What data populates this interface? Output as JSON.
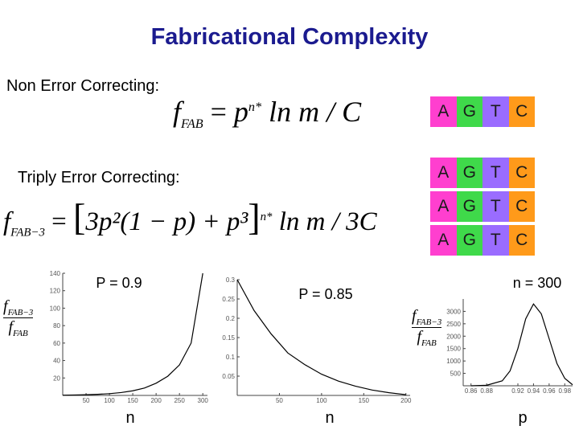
{
  "title": "Fabricational Complexity",
  "section1": {
    "label": "Non Error Correcting:",
    "formula": {
      "f": "f",
      "sub": "FAB",
      "eq": "=",
      "base": "p",
      "exp": "n*",
      "tail": "ln m / C"
    }
  },
  "section2": {
    "label": "Triply Error Correcting:",
    "formula": {
      "f": "f",
      "sub": "FAB−3",
      "eq": "=",
      "open": "[",
      "body": "3p²(1 − p) + p³",
      "close": "]",
      "exp": "n*",
      "tail": "ln m / 3C"
    }
  },
  "dna_rows": [
    [
      "A",
      "G",
      "T",
      "C"
    ],
    [
      "A",
      "G",
      "T",
      "C"
    ],
    [
      "A",
      "G",
      "T",
      "C"
    ],
    [
      "A",
      "G",
      "T",
      "C"
    ]
  ],
  "dna_colors": [
    "#ff3fcf",
    "#3fd94a",
    "#9a6cff",
    "#ff9a1a"
  ],
  "ratio_label": {
    "num": "f",
    "num_sub": "FAB−3",
    "den": "f",
    "den_sub": "FAB"
  },
  "chart_data": [
    {
      "type": "line",
      "title": "P = 0.9",
      "x_label": "n",
      "x": [
        0,
        25,
        50,
        75,
        100,
        125,
        150,
        175,
        200,
        225,
        250,
        275,
        300
      ],
      "values": [
        0.3,
        0.5,
        0.8,
        1.3,
        2,
        3.3,
        5.3,
        8.5,
        14,
        22,
        35,
        60,
        140
      ],
      "xlim": [
        0,
        310
      ],
      "xticks": [
        50,
        100,
        150,
        200,
        250,
        300
      ],
      "ylim": [
        0,
        140
      ],
      "yticks": [
        20,
        40,
        60,
        80,
        100,
        120,
        140
      ],
      "color": "#000000"
    },
    {
      "type": "line",
      "title": "P = 0.85",
      "x_label": "n",
      "x": [
        0,
        20,
        40,
        60,
        80,
        100,
        120,
        140,
        160,
        180,
        200
      ],
      "values": [
        0.3,
        0.22,
        0.16,
        0.11,
        0.08,
        0.055,
        0.037,
        0.024,
        0.014,
        0.007,
        0.002
      ],
      "xlim": [
        0,
        205
      ],
      "xticks": [
        50,
        100,
        150,
        200
      ],
      "ylim": [
        0,
        0.3
      ],
      "yticks": [
        0.05,
        0.1,
        0.15,
        0.2,
        0.25,
        0.3
      ],
      "color": "#000000"
    },
    {
      "type": "line",
      "title": "n = 300",
      "x_label": "p",
      "x": [
        0.86,
        0.88,
        0.9,
        0.91,
        0.92,
        0.93,
        0.94,
        0.95,
        0.96,
        0.97,
        0.98,
        0.99
      ],
      "values": [
        0,
        20,
        200,
        600,
        1500,
        2700,
        3300,
        2900,
        1900,
        900,
        300,
        40
      ],
      "xlim": [
        0.85,
        0.99
      ],
      "xticks": [
        0.86,
        0.88,
        0.92,
        0.94,
        0.96,
        0.98
      ],
      "ylim": [
        0,
        3500
      ],
      "yticks": [
        500,
        1000,
        1500,
        2000,
        2500,
        3000
      ],
      "color": "#000000"
    }
  ]
}
